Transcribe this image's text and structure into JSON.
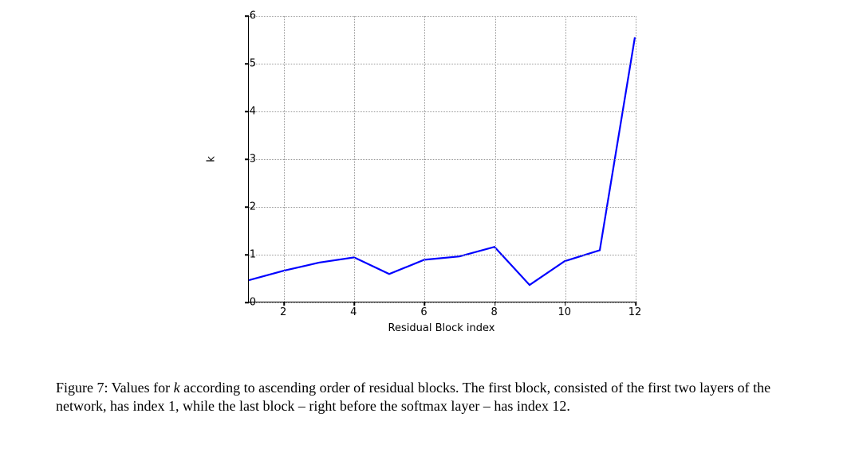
{
  "chart": {
    "type": "line",
    "xlabel": "Residual Block index",
    "ylabel": "k",
    "xlim": [
      1,
      12
    ],
    "ylim": [
      0,
      6
    ],
    "xticks": [
      2,
      4,
      6,
      8,
      10,
      12
    ],
    "yticks": [
      0,
      1,
      2,
      3,
      4,
      5,
      6
    ],
    "grid_color": "#999999",
    "grid_style": "dotted",
    "line_color": "#0000ff",
    "line_width": 2.2,
    "background_color": "#ffffff",
    "axis_color": "#000000",
    "tick_fontsize": 13,
    "label_fontsize": 13,
    "series": {
      "x": [
        1,
        2,
        3,
        4,
        5,
        6,
        7,
        8,
        9,
        10,
        11,
        12
      ],
      "y": [
        0.45,
        0.65,
        0.82,
        0.93,
        0.58,
        0.88,
        0.95,
        1.15,
        0.35,
        0.85,
        1.08,
        5.55
      ]
    }
  },
  "caption": {
    "label": "Figure 7:",
    "text_before_k": " Values for ",
    "k": "k",
    "text_after_k": " according to ascending order of residual blocks. The first block, consisted of the first two layers of the network, has index 1, while the last block – right before the softmax layer – has index 12.",
    "fontsize": 18,
    "color": "#000000"
  }
}
